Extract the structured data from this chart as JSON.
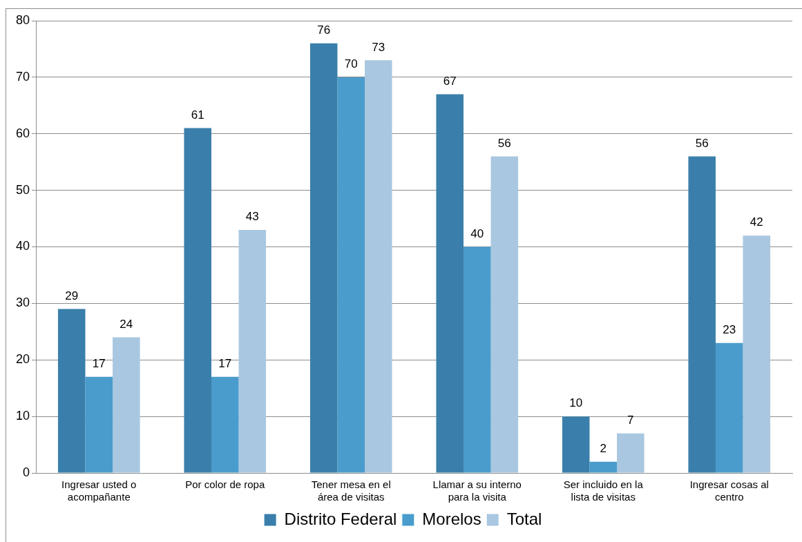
{
  "chart_data": {
    "type": "bar",
    "categories": [
      "Ingresar usted o acompañante",
      "Por color de ropa",
      "Tener mesa en el área de visitas",
      "Llamar a su interno para la visita",
      "Ser incluido en la lista de visitas",
      "Ingresar cosas al centro"
    ],
    "series": [
      {
        "name": "Distrito Federal",
        "color": "#3a7fab",
        "values": [
          29,
          61,
          76,
          67,
          10,
          56
        ]
      },
      {
        "name": "Morelos",
        "color": "#4a9ccc",
        "values": [
          17,
          17,
          70,
          40,
          2,
          23
        ]
      },
      {
        "name": "Total",
        "color": "#a9c7e0",
        "values": [
          24,
          43,
          73,
          56,
          7,
          42
        ]
      }
    ],
    "ylim": [
      0,
      80
    ],
    "yticks": [
      0,
      10,
      20,
      30,
      40,
      50,
      60,
      70,
      80
    ],
    "grid": "y",
    "legend": "bottom",
    "data_labels": true
  }
}
